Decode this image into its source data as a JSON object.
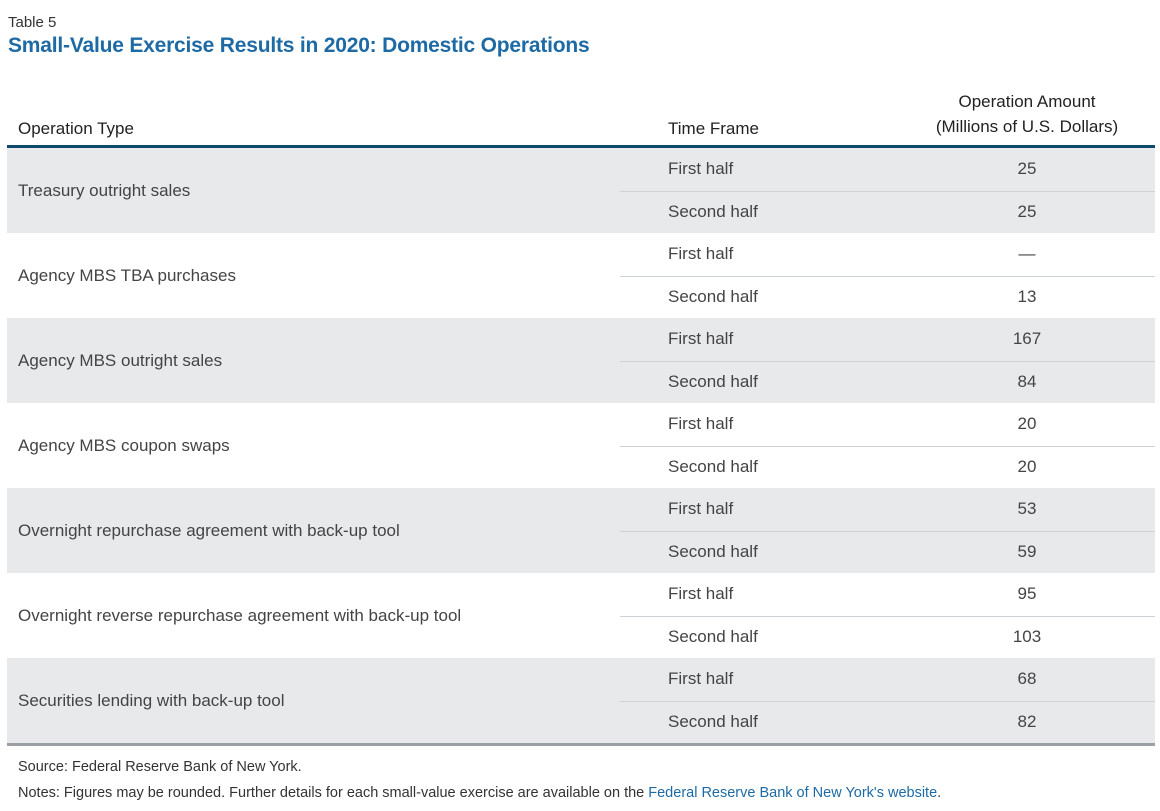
{
  "table_label": "Table 5",
  "title": "Small-Value Exercise Results in 2020: Domestic Operations",
  "headers": {
    "operation_type": "Operation Type",
    "time_frame": "Time Frame",
    "amount_line1": "Operation Amount",
    "amount_line2": "(Millions of U.S. Dollars)"
  },
  "rows": [
    {
      "name": "Treasury outright sales",
      "sub": [
        {
          "tf": "First half",
          "amt": "25"
        },
        {
          "tf": "Second half",
          "amt": "25"
        }
      ]
    },
    {
      "name": "Agency MBS TBA purchases",
      "sub": [
        {
          "tf": "First half",
          "amt": "—"
        },
        {
          "tf": "Second half",
          "amt": "13"
        }
      ]
    },
    {
      "name": "Agency MBS outright sales",
      "sub": [
        {
          "tf": "First half",
          "amt": "167"
        },
        {
          "tf": "Second half",
          "amt": "84"
        }
      ]
    },
    {
      "name": "Agency MBS coupon swaps",
      "sub": [
        {
          "tf": "First half",
          "amt": "20"
        },
        {
          "tf": "Second half",
          "amt": "20"
        }
      ]
    },
    {
      "name": "Overnight  repurchase agreement with back-up tool",
      "sub": [
        {
          "tf": "First half",
          "amt": "53"
        },
        {
          "tf": "Second half",
          "amt": "59"
        }
      ]
    },
    {
      "name": "Overnight reverse repurchase agreement with back-up tool",
      "sub": [
        {
          "tf": "First half",
          "amt": "95"
        },
        {
          "tf": "Second half",
          "amt": "103"
        }
      ]
    },
    {
      "name": "Securities lending with back-up tool",
      "sub": [
        {
          "tf": "First half",
          "amt": "68"
        },
        {
          "tf": "Second half",
          "amt": "82"
        }
      ]
    }
  ],
  "source": "Source: Federal Reserve Bank of New York.",
  "notes_text": "Notes: Figures may be rounded. Further details for each small-value exercise are available on the ",
  "notes_link": "Federal Reserve Bank of New York's website",
  "notes_end": ".",
  "colors": {
    "title": "#1d6aa5",
    "header_rule": "#0f4a6c",
    "row_shade": "#e8e9eb"
  }
}
